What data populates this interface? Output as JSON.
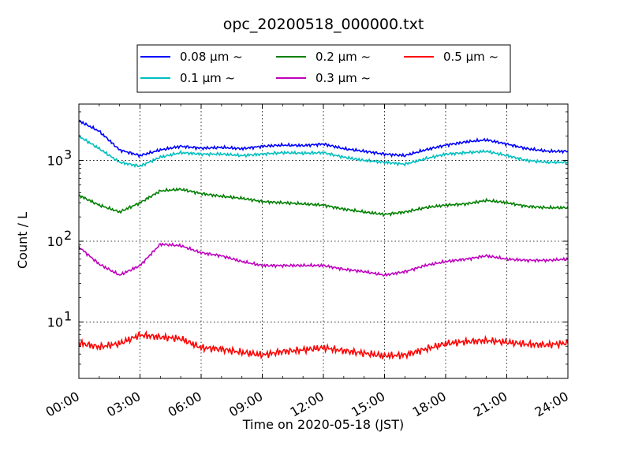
{
  "chart_data": {
    "type": "line",
    "title": "opc_20200518_000000.txt",
    "xlabel": "Time on 2020-05-18 (JST)",
    "ylabel": "Count / L",
    "yscale": "log",
    "xlim": [
      "00:00",
      "24:00"
    ],
    "ylim": [
      2,
      5000
    ],
    "grid": true,
    "legend_position": "top-center",
    "x_tick_labels": [
      "00:00",
      "03:00",
      "06:00",
      "09:00",
      "12:00",
      "15:00",
      "18:00",
      "21:00",
      "24:00"
    ],
    "y_tick_labels": [
      {
        "base": "10",
        "exp": "1",
        "value": 10
      },
      {
        "base": "10",
        "exp": "2",
        "value": 100
      },
      {
        "base": "10",
        "exp": "3",
        "value": 1000
      }
    ],
    "x": [
      "00:00",
      "01:00",
      "02:00",
      "03:00",
      "04:00",
      "05:00",
      "06:00",
      "07:00",
      "08:00",
      "09:00",
      "10:00",
      "11:00",
      "12:00",
      "13:00",
      "14:00",
      "15:00",
      "16:00",
      "17:00",
      "18:00",
      "19:00",
      "20:00",
      "21:00",
      "22:00",
      "23:00",
      "24:00"
    ],
    "series": [
      {
        "name": "0.08 μm ~",
        "color": "#0000ff",
        "values": [
          3100,
          2300,
          1350,
          1150,
          1350,
          1500,
          1420,
          1450,
          1400,
          1500,
          1550,
          1530,
          1600,
          1400,
          1300,
          1200,
          1150,
          1350,
          1550,
          1700,
          1800,
          1600,
          1400,
          1300,
          1300
        ]
      },
      {
        "name": "0.1 μm ~",
        "color": "#00bfbf",
        "values": [
          2000,
          1400,
          950,
          850,
          1100,
          1250,
          1200,
          1200,
          1150,
          1200,
          1250,
          1230,
          1250,
          1100,
          1000,
          950,
          900,
          1050,
          1200,
          1250,
          1300,
          1150,
          1000,
          950,
          950
        ]
      },
      {
        "name": "0.2 μm ~",
        "color": "#008000",
        "values": [
          370,
          280,
          230,
          300,
          420,
          440,
          390,
          360,
          340,
          310,
          300,
          290,
          280,
          250,
          230,
          215,
          230,
          260,
          280,
          290,
          320,
          300,
          270,
          260,
          260
        ]
      },
      {
        "name": "0.3 μm ~",
        "color": "#bf00bf",
        "values": [
          85,
          52,
          38,
          50,
          92,
          88,
          72,
          66,
          56,
          50,
          50,
          50,
          50,
          45,
          42,
          38,
          42,
          50,
          56,
          60,
          66,
          60,
          58,
          58,
          60
        ]
      },
      {
        "name": "0.5 μm ~",
        "color": "#ff0000",
        "values": [
          5.5,
          4.9,
          5.4,
          6.9,
          6.5,
          6.2,
          4.8,
          4.6,
          4.2,
          3.9,
          4.3,
          4.5,
          4.8,
          4.4,
          4.1,
          3.8,
          3.9,
          4.6,
          5.4,
          5.7,
          5.9,
          5.6,
          5.3,
          5.2,
          5.5
        ]
      }
    ]
  }
}
